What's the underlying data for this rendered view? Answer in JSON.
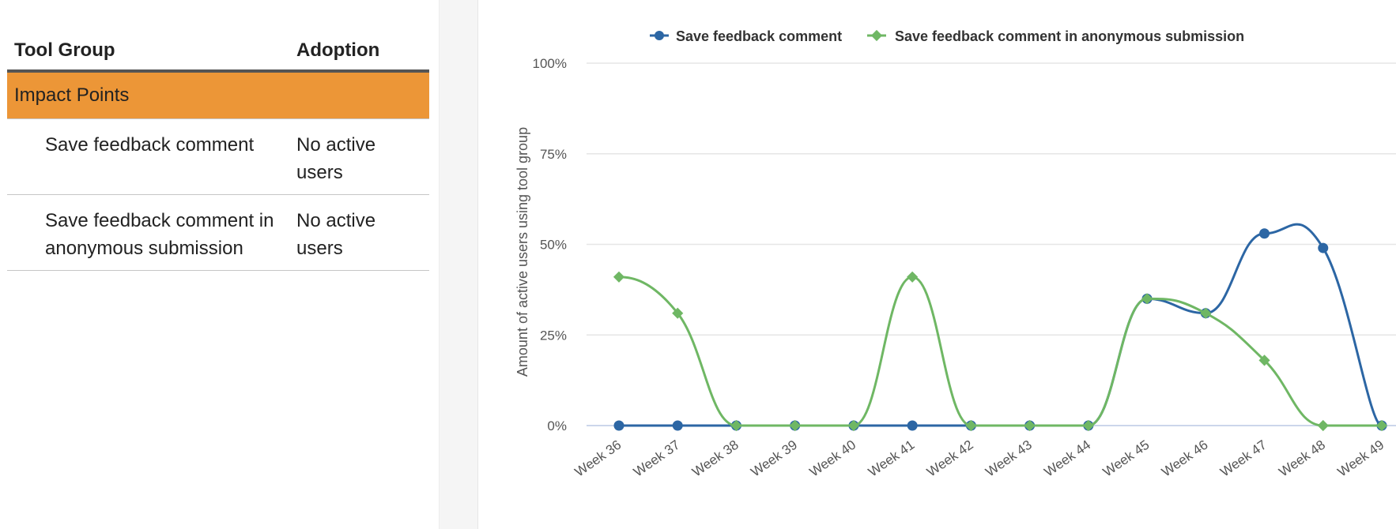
{
  "table": {
    "headers": {
      "tool_group": "Tool Group",
      "adoption": "Adoption"
    },
    "group": {
      "name": "Impact Points",
      "color": "#ec9637"
    },
    "rows": [
      {
        "name": "Save feedback comment",
        "adoption": "No active users"
      },
      {
        "name": "Save feedback comment in anonymous submission",
        "adoption": "No active users"
      }
    ]
  },
  "chart_data": {
    "type": "line",
    "title": "",
    "xlabel": "",
    "ylabel": "Amount of active users using tool group",
    "ylim": [
      0,
      100
    ],
    "yticks": [
      "0%",
      "25%",
      "50%",
      "75%",
      "100%"
    ],
    "grid": true,
    "legend_position": "top",
    "categories": [
      "Week 36",
      "Week 37",
      "Week 38",
      "Week 39",
      "Week 40",
      "Week 41",
      "Week 42",
      "Week 43",
      "Week 44",
      "Week 45",
      "Week 46",
      "Week 47",
      "Week 48",
      "Week 49"
    ],
    "series": [
      {
        "name": "Save feedback comment",
        "color": "#2c66a4",
        "marker": "circle",
        "values": [
          0,
          0,
          0,
          0,
          0,
          0,
          0,
          0,
          0,
          35,
          31,
          53,
          49,
          0
        ]
      },
      {
        "name": "Save feedback comment in anonymous submission",
        "color": "#6fb764",
        "marker": "diamond",
        "values": [
          41,
          31,
          0,
          0,
          0,
          41,
          0,
          0,
          0,
          35,
          31,
          18,
          0,
          0
        ]
      }
    ]
  }
}
